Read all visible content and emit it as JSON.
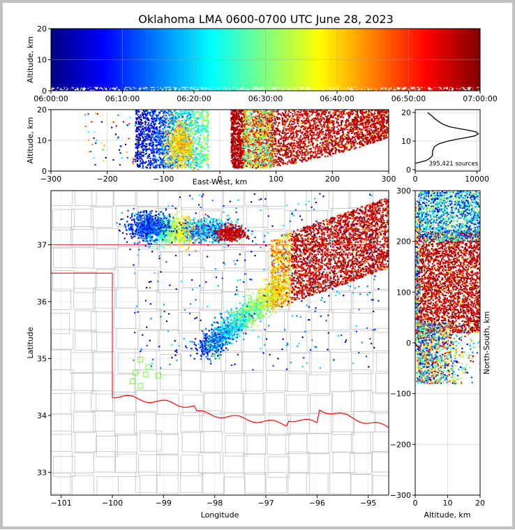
{
  "chart_data": {
    "title": "Oklahoma LMA 0600-0700 UTC June 28, 2023",
    "colormap": "jet",
    "colors": {
      "axis": "#000000",
      "grid": "#d9d9d9",
      "county_line": "#c8c8c8",
      "state_line": "#c8c8c8",
      "border_red": "#ff0000"
    },
    "source_count_label": "395,421 sources",
    "panels": [
      {
        "id": "altitude-time",
        "type": "scatter",
        "xlabel": "",
        "ylabel": "Altitude, km",
        "x_ticks": [
          "06:00:00",
          "06:10:00",
          "06:20:00",
          "06:30:00",
          "06:40:00",
          "06:50:00",
          "07:00:00"
        ],
        "y_ticks": [
          "0",
          "10",
          "20"
        ],
        "xlim_minutes": [
          0,
          60
        ],
        "ylim": [
          0,
          20
        ]
      },
      {
        "id": "altitude-ew",
        "type": "scatter",
        "xlabel": "East-West, km",
        "ylabel": "Altitude, km",
        "x_ticks": [
          "−300",
          "−200",
          "−100",
          "0",
          "100",
          "200",
          "300"
        ],
        "y_ticks": [
          "0",
          "10",
          "20"
        ],
        "xlim": [
          -300,
          300
        ],
        "ylim": [
          0,
          20
        ]
      },
      {
        "id": "altitude-histogram",
        "type": "line",
        "xlabel": "",
        "ylabel": "",
        "x_ticks": [
          "0",
          "10000"
        ],
        "y_ticks": [
          "0",
          "10",
          "20"
        ],
        "xlim": [
          0,
          10500
        ],
        "ylim": [
          -0.5,
          21
        ],
        "profile": [
          [
            2000,
            20
          ],
          [
            2600,
            19
          ],
          [
            3200,
            17.8
          ],
          [
            3800,
            16.8
          ],
          [
            4600,
            15.8
          ],
          [
            5600,
            15
          ],
          [
            7000,
            14.4
          ],
          [
            8600,
            13.8
          ],
          [
            9800,
            13.2
          ],
          [
            10200,
            12.5
          ],
          [
            9600,
            11.8
          ],
          [
            8000,
            11.1
          ],
          [
            6400,
            10.5
          ],
          [
            5000,
            9.8
          ],
          [
            3800,
            9
          ],
          [
            3100,
            8
          ],
          [
            2800,
            6.5
          ],
          [
            2800,
            5
          ],
          [
            2500,
            4.2
          ],
          [
            1800,
            3.2
          ],
          [
            800,
            2.6
          ],
          [
            0,
            2.2
          ]
        ]
      },
      {
        "id": "plan-view",
        "type": "scatter",
        "xlabel": "Longitude",
        "ylabel": "Latitude",
        "x_ticks": [
          "−101",
          "−100",
          "−99",
          "−98",
          "−97",
          "−96",
          "−95"
        ],
        "y_ticks": [
          "33",
          "34",
          "35",
          "36",
          "37"
        ],
        "xlim": [
          -101.2,
          -94.6
        ],
        "ylim": [
          32.6,
          37.95
        ]
      },
      {
        "id": "ns-altitude",
        "type": "scatter",
        "xlabel": "Altitude, km",
        "ylabel": "North-South, km",
        "x_ticks": [
          "0",
          "10",
          "20"
        ],
        "y_ticks": [
          "−300",
          "−200",
          "−100",
          "0",
          "100",
          "200",
          "300"
        ],
        "xlim": [
          0,
          20
        ],
        "ylim": [
          -300,
          300
        ]
      }
    ]
  }
}
